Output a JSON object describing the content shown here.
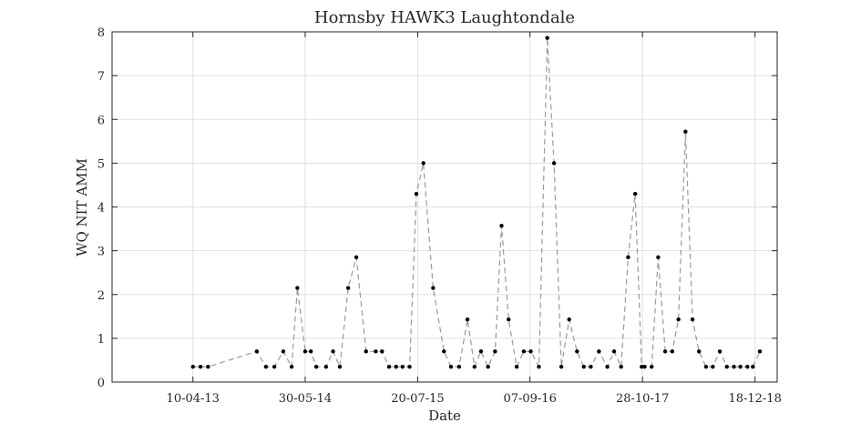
{
  "chart_data": {
    "type": "line",
    "title": "Hornsby HAWK3 Laughtondale",
    "xlabel": "Date",
    "ylabel": "WQ NIT AMM",
    "xlim": [
      "2012-06-15",
      "2019-03-10"
    ],
    "ylim": [
      0,
      8
    ],
    "grid": true,
    "x_tick_labels": [
      "10-04-13",
      "30-05-14",
      "20-07-15",
      "07-09-16",
      "28-10-17",
      "18-12-18"
    ],
    "x_ticks": [
      "2013-04-10",
      "2014-05-30",
      "2015-07-20",
      "2016-09-07",
      "2017-10-28",
      "2018-12-18"
    ],
    "y_ticks": [
      0,
      1,
      2,
      3,
      4,
      5,
      6,
      7,
      8
    ],
    "line_color": "#999999",
    "marker_color": "#000000",
    "series": [
      {
        "x": [
          "2013-04-10",
          "2013-05-08",
          "2013-06-05",
          "2013-12-02",
          "2014-01-05",
          "2014-02-05",
          "2014-03-10",
          "2014-04-10",
          "2014-05-01",
          "2014-05-30",
          "2014-06-20",
          "2014-07-10",
          "2014-08-15",
          "2014-09-10",
          "2014-10-05",
          "2014-11-05",
          "2014-12-05",
          "2015-01-10",
          "2015-02-15",
          "2015-03-10",
          "2015-04-05",
          "2015-05-01",
          "2015-05-25",
          "2015-06-20",
          "2015-07-15",
          "2015-08-10",
          "2015-09-15",
          "2015-10-25",
          "2015-11-20",
          "2015-12-20",
          "2016-01-20",
          "2016-02-15",
          "2016-03-10",
          "2016-04-05",
          "2016-05-01",
          "2016-05-25",
          "2016-06-20",
          "2016-07-20",
          "2016-08-15",
          "2016-09-10",
          "2016-10-10",
          "2016-11-10",
          "2016-12-05",
          "2017-01-01",
          "2017-01-30",
          "2017-02-28",
          "2017-03-25",
          "2017-04-20",
          "2017-05-20",
          "2017-06-20",
          "2017-07-15",
          "2017-08-10",
          "2017-09-05",
          "2017-10-01",
          "2017-10-25",
          "2017-11-05",
          "2017-12-01",
          "2017-12-25",
          "2018-01-20",
          "2018-02-15",
          "2018-03-10",
          "2018-04-05",
          "2018-05-01",
          "2018-05-25",
          "2018-06-20",
          "2018-07-15",
          "2018-08-10",
          "2018-09-05",
          "2018-10-01",
          "2018-10-25",
          "2018-11-20",
          "2018-12-10",
          "2019-01-05"
        ],
        "y": [
          0.35,
          0.35,
          0.35,
          0.7,
          0.35,
          0.35,
          0.7,
          0.35,
          2.15,
          0.7,
          0.7,
          0.35,
          0.35,
          0.7,
          0.35,
          2.15,
          2.85,
          0.7,
          0.7,
          0.7,
          0.35,
          0.35,
          0.35,
          0.35,
          4.3,
          5.0,
          2.15,
          0.7,
          0.35,
          0.35,
          1.43,
          0.35,
          0.7,
          0.35,
          0.7,
          3.57,
          1.43,
          0.35,
          0.7,
          0.7,
          0.35,
          7.86,
          5.0,
          0.35,
          1.43,
          0.7,
          0.35,
          0.35,
          0.7,
          0.35,
          0.7,
          0.35,
          2.85,
          4.3,
          0.35,
          0.35,
          0.35,
          2.85,
          0.7,
          0.7,
          1.43,
          5.72,
          1.43,
          0.7,
          0.35,
          0.35,
          0.7,
          0.35,
          0.35,
          0.35,
          0.35,
          0.35,
          0.7
        ]
      }
    ]
  }
}
